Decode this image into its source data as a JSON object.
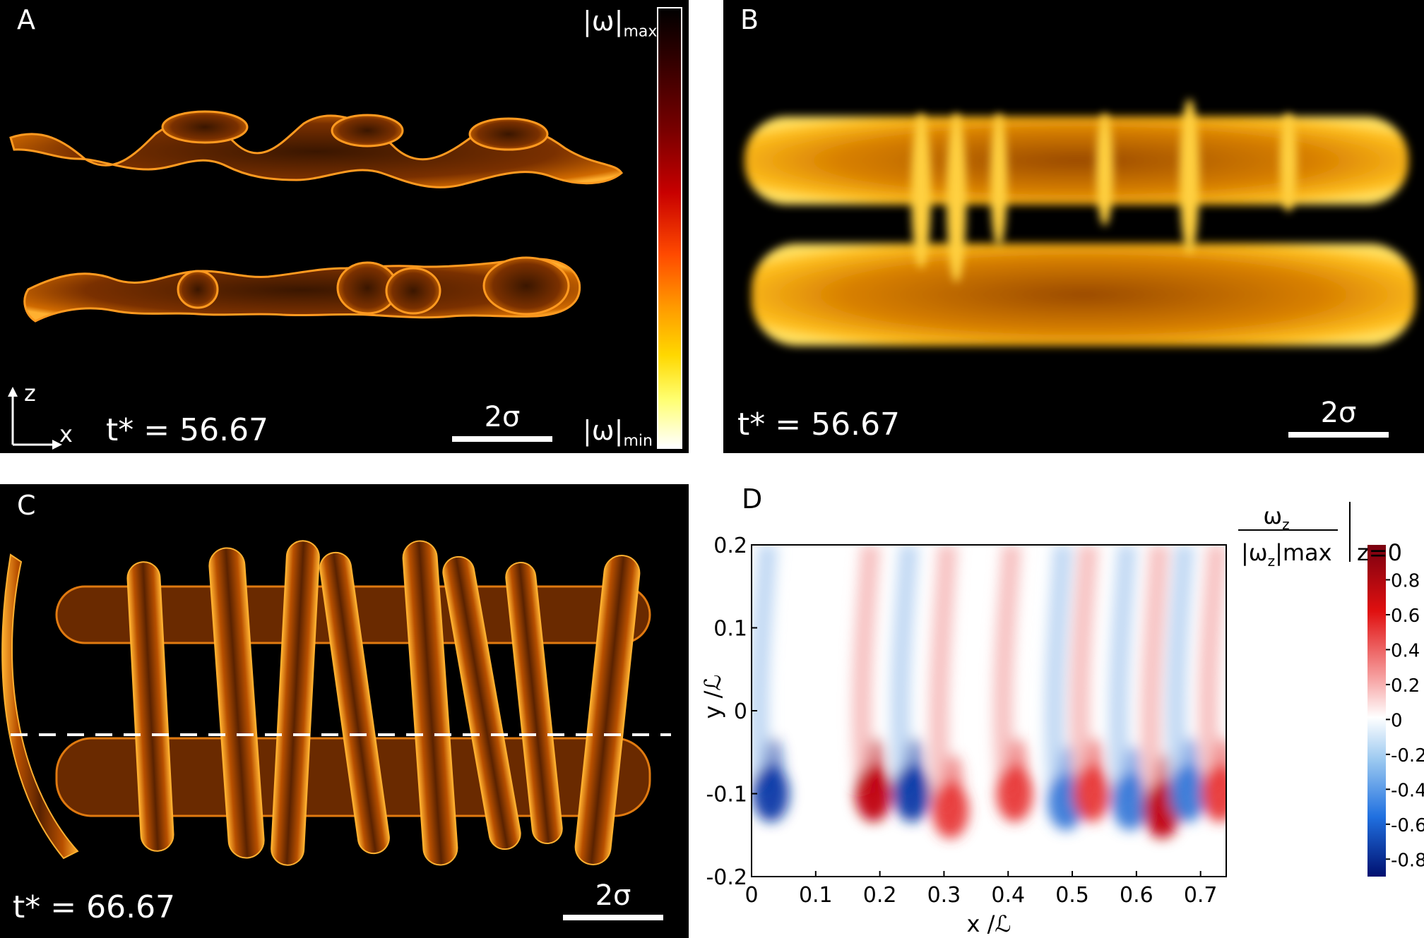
{
  "panels": {
    "A": {
      "label": "A",
      "time": "t* = 56.67",
      "scale": "2σ",
      "cb_max": "|ω|",
      "cb_max_sub": "max",
      "cb_min": "|ω|",
      "cb_min_sub": "min",
      "axis_z": "z",
      "axis_x": "x"
    },
    "B": {
      "label": "B",
      "time": "t* = 56.67",
      "scale": "2σ"
    },
    "C": {
      "label": "C",
      "time": "t* = 66.67",
      "scale": "2σ"
    },
    "D": {
      "label": "D",
      "cb_title_num": "ω",
      "cb_title_num_sub": "z",
      "cb_title_den": "|ω",
      "cb_title_den_sub": "z",
      "cb_title_den_sub2": "|max",
      "cb_title_eval": "z=0"
    }
  },
  "colors": {
    "vortex_dark": "#3a1600",
    "vortex_mid": "#c85a00",
    "vortex_edge": "#ffd040",
    "red": "#d00000",
    "blue": "#0040c0"
  },
  "chart_data": {
    "type": "heatmap",
    "xlabel": "x /ℒ",
    "ylabel": "y /ℒ",
    "xlim": [
      0,
      0.74
    ],
    "ylim": [
      -0.2,
      0.2
    ],
    "xticks": [
      "0",
      "0.1",
      "0.2",
      "0.3",
      "0.4",
      "0.5",
      "0.6",
      "0.7"
    ],
    "xtick_values": [
      0,
      0.1,
      0.2,
      0.3,
      0.4,
      0.5,
      0.6,
      0.7
    ],
    "yticks": [
      "-0.2",
      "-0.1",
      "0",
      "0.1",
      "0.2"
    ],
    "ytick_values": [
      -0.2,
      -0.1,
      0,
      0.1,
      0.2
    ],
    "colorbar_ticks": [
      "0.8",
      "0.6",
      "0.4",
      "0.2",
      "0",
      "-0.2",
      "-0.4",
      "-0.6",
      "-0.8"
    ],
    "colorbar_values": [
      0.8,
      0.6,
      0.4,
      0.2,
      0,
      -0.2,
      -0.4,
      -0.6,
      -0.8
    ],
    "clim": [
      -0.9,
      1.0
    ],
    "vortex_cores": [
      {
        "x": 0.03,
        "y": -0.1,
        "value": -0.8
      },
      {
        "x": 0.19,
        "y": -0.1,
        "value": 0.9
      },
      {
        "x": 0.25,
        "y": -0.1,
        "value": -0.8
      },
      {
        "x": 0.31,
        "y": -0.12,
        "value": 0.5
      },
      {
        "x": 0.41,
        "y": -0.1,
        "value": 0.5
      },
      {
        "x": 0.49,
        "y": -0.11,
        "value": -0.7
      },
      {
        "x": 0.53,
        "y": -0.1,
        "value": 0.7
      },
      {
        "x": 0.59,
        "y": -0.11,
        "value": -0.7
      },
      {
        "x": 0.64,
        "y": -0.12,
        "value": 0.8
      },
      {
        "x": 0.68,
        "y": -0.1,
        "value": -0.6
      },
      {
        "x": 0.73,
        "y": -0.1,
        "value": 0.6
      }
    ]
  }
}
